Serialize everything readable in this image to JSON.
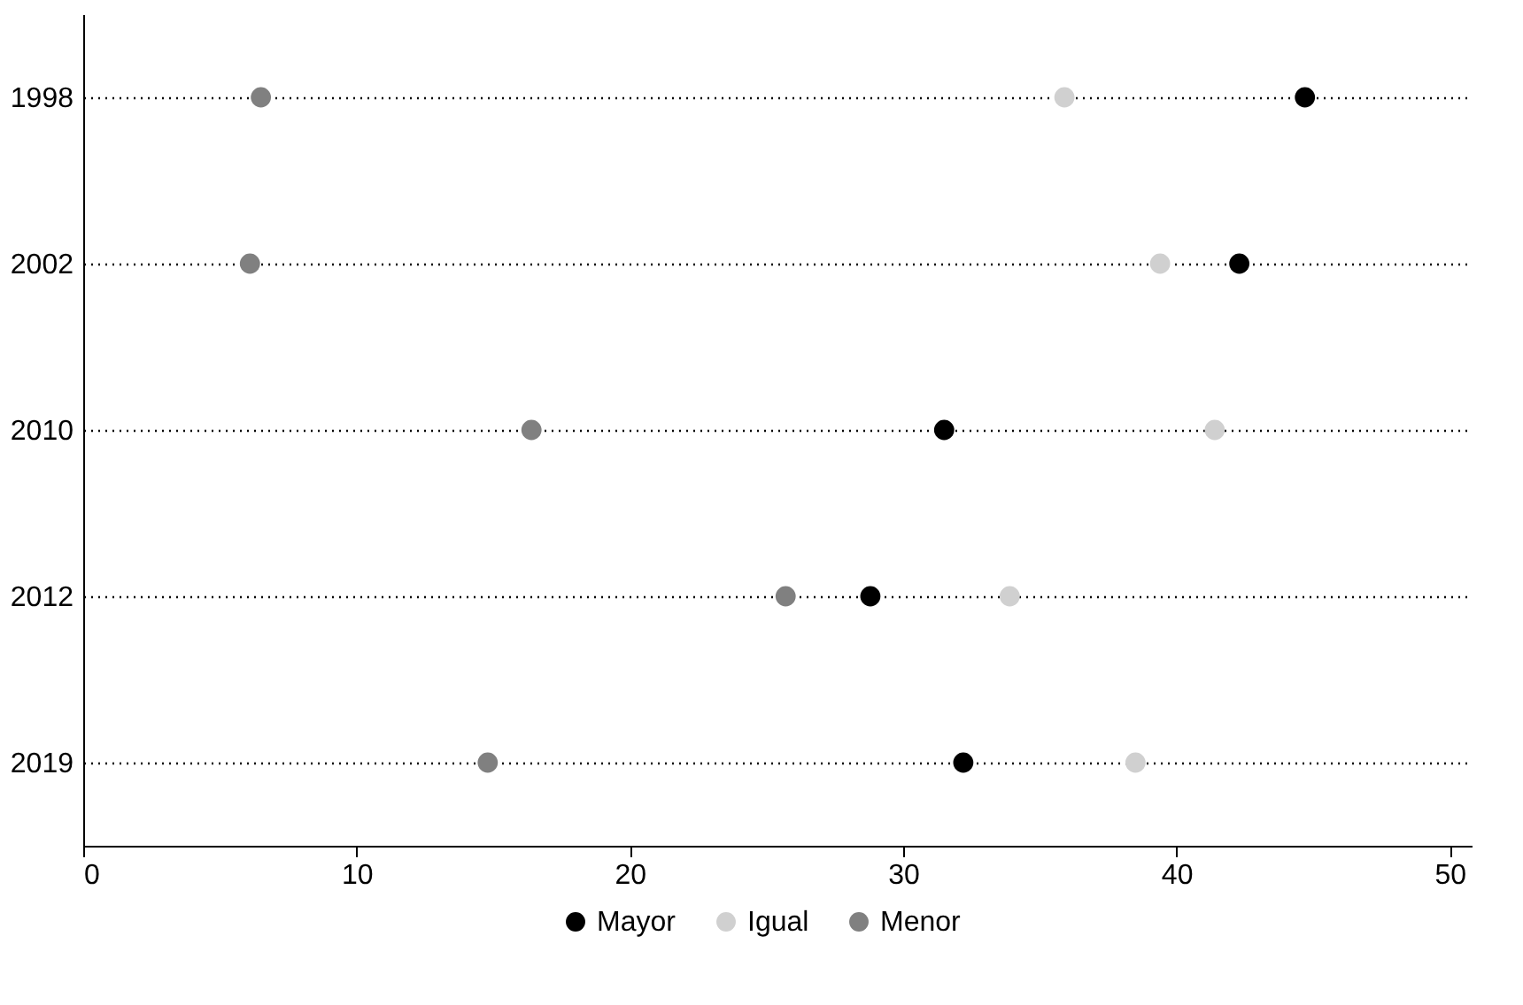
{
  "chart_data": {
    "type": "scatter",
    "orientation": "horizontal",
    "categories": [
      "1998",
      "2002",
      "2010",
      "2012",
      "2019"
    ],
    "series": [
      {
        "name": "Mayor",
        "color": "#000000",
        "values": [
          44.7,
          42.3,
          31.5,
          28.8,
          32.2
        ]
      },
      {
        "name": "Igual",
        "color": "#d0d0d0",
        "values": [
          35.9,
          39.4,
          41.4,
          33.9,
          38.5
        ]
      },
      {
        "name": "Menor",
        "color": "#808080",
        "values": [
          6.5,
          6.1,
          16.4,
          25.7,
          14.8
        ]
      }
    ],
    "xlim": [
      0,
      50.8
    ],
    "xticks": [
      0,
      10,
      20,
      30,
      40,
      50
    ],
    "grid": "y",
    "line_style": "dotted",
    "legend": "bottom",
    "marker": "circle"
  }
}
